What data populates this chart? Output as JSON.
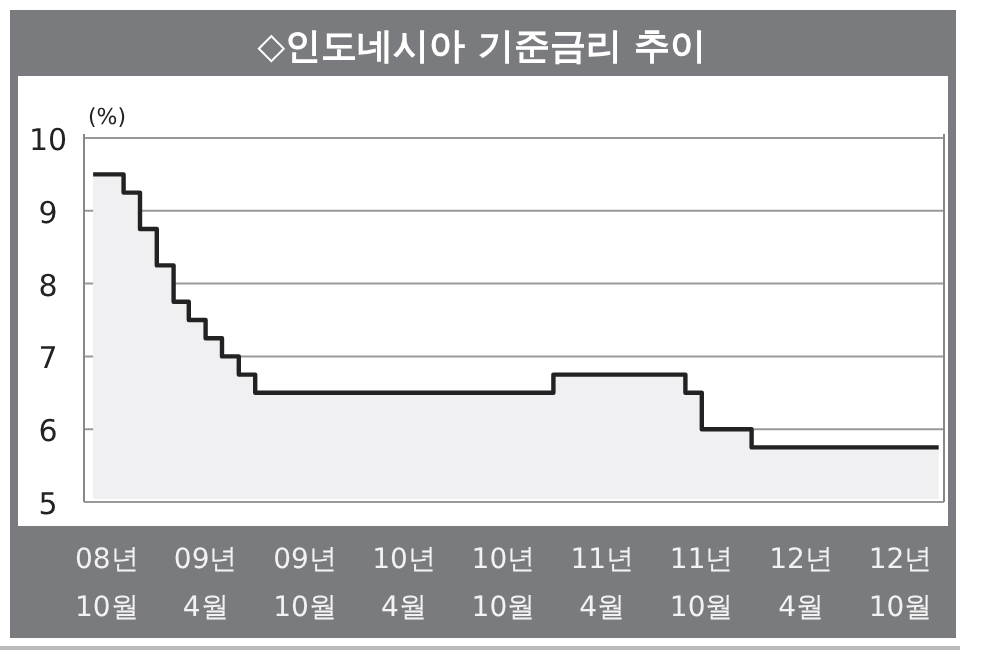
{
  "chart_data": {
    "type": "area",
    "title": "◇인도네시아 기준금리 추이",
    "ylabel": "(%)",
    "x": [
      "2008-09",
      "2008-11",
      "2008-12",
      "2009-01",
      "2009-02",
      "2009-03",
      "2009-04",
      "2009-05",
      "2009-06",
      "2009-07",
      "2011-01",
      "2011-09",
      "2011-10",
      "2012-01",
      "2012-12-15"
    ],
    "series": [
      {
        "color": "#222222",
        "values": [
          9.5,
          9.25,
          8.75,
          8.25,
          7.75,
          7.5,
          7.25,
          7.0,
          6.75,
          6.5,
          6.75,
          6.5,
          6.0,
          5.75,
          5.75
        ]
      }
    ],
    "xlim": [
      "2008-08-20",
      "2012-12-20"
    ],
    "xticks": [
      {
        "value": "2008-10",
        "label": "08년\n10월"
      },
      {
        "value": "2009-04",
        "label": "09년\n4월"
      },
      {
        "value": "2009-10",
        "label": "09년\n10월"
      },
      {
        "value": "2010-04",
        "label": "10년\n4월"
      },
      {
        "value": "2010-10",
        "label": "10년\n10월"
      },
      {
        "value": "2011-04",
        "label": "11년\n4월"
      },
      {
        "value": "2011-10",
        "label": "11년\n10월"
      },
      {
        "value": "2012-04",
        "label": "12년\n4월"
      },
      {
        "value": "2012-10",
        "label": "12년\n10월"
      }
    ],
    "ylim": [
      5,
      10
    ],
    "yticks": [
      5,
      6,
      7,
      8,
      9,
      10
    ],
    "grid": "y",
    "marker": "none",
    "line_style": "solid"
  }
}
